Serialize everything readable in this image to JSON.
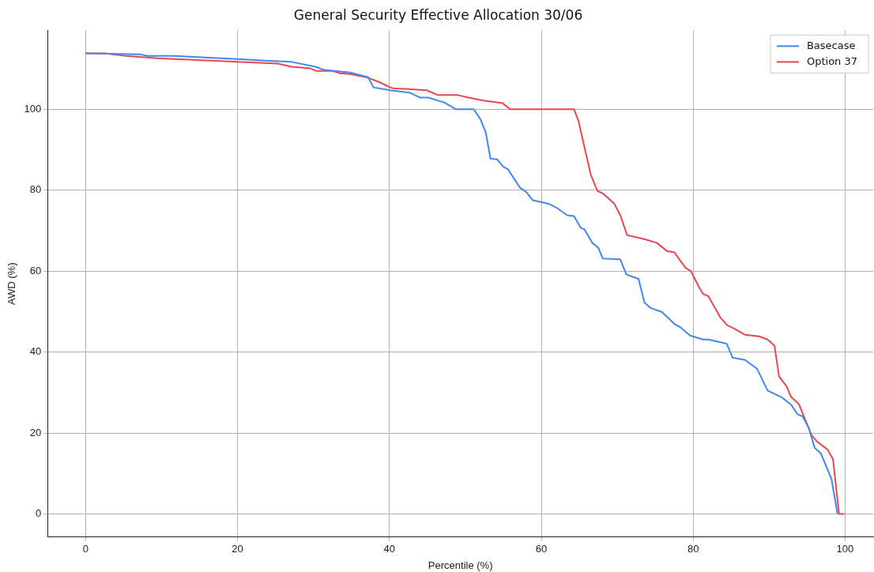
{
  "chart_data": {
    "type": "line",
    "title": "General Security Effective Allocation 30/06",
    "xlabel": "Percentile (%)",
    "ylabel": "AWD (%)",
    "xlim": [
      -5,
      103.7
    ],
    "ylim": [
      -5.7,
      119.5
    ],
    "xticks": [
      0,
      20,
      40,
      60,
      80,
      100
    ],
    "yticks": [
      0,
      20,
      40,
      60,
      80,
      100
    ],
    "grid": true,
    "legend": "top right",
    "series": [
      {
        "name": "Basecase",
        "color": "#4287f0",
        "x": [
          0,
          7.1,
          8.1,
          11.6,
          20,
          23.6,
          27.1,
          30.3,
          31.4,
          34.8,
          37.2,
          37.9,
          40.1,
          42.7,
          44,
          45.1,
          47.2,
          48.8,
          51.1,
          52,
          52.7,
          53.3,
          54.2,
          55,
          55.6,
          57.2,
          58,
          58.9,
          60.9,
          62,
          63.4,
          64.3,
          65.2,
          65.7,
          66.7,
          67.5,
          68.1,
          70.4,
          71.2,
          72.8,
          73.6,
          74.4,
          75.9,
          77.5,
          78.4,
          79.6,
          81.3,
          82,
          84.4,
          85.2,
          86.8,
          88.4,
          89.8,
          91.6,
          92.9,
          93.7,
          94.4,
          95.2,
          96,
          96.8,
          98.2,
          99
        ],
        "values": [
          113.8,
          113.6,
          113.2,
          113.2,
          112.4,
          112,
          111.7,
          110.5,
          109.7,
          109.1,
          107.9,
          105.4,
          104.7,
          104.1,
          102.9,
          102.9,
          101.7,
          100,
          100,
          97.5,
          94.2,
          87.8,
          87.6,
          85.8,
          85.2,
          80.6,
          79.6,
          77.5,
          76.7,
          75.7,
          73.8,
          73.6,
          70.7,
          70.3,
          67,
          65.8,
          63.1,
          62.9,
          59.2,
          58.1,
          52.2,
          50.9,
          49.9,
          47,
          46,
          44.1,
          43.1,
          43.1,
          42.1,
          38.6,
          38.1,
          35.9,
          30.5,
          28.9,
          27,
          24.7,
          24.1,
          21.4,
          16.3,
          15,
          8.7,
          0
        ]
      },
      {
        "name": "Option 37",
        "color": "#eb4650",
        "x": [
          0,
          2.5,
          5.3,
          9.5,
          16.6,
          20,
          25.3,
          27.1,
          29.6,
          30.3,
          32.4,
          33.5,
          34.8,
          37.2,
          38.8,
          40.1,
          40.5,
          44.9,
          46.4,
          49,
          50.4,
          52.5,
          54.9,
          55.9,
          64.3,
          64.9,
          66.5,
          67.4,
          68.1,
          69.6,
          70.4,
          71.3,
          73.4,
          75.2,
          76.6,
          77.5,
          78.1,
          79,
          79.7,
          80.7,
          81.3,
          82,
          83.6,
          84.5,
          85.2,
          86.8,
          88.7,
          89.8,
          90.7,
          91.3,
          92.3,
          92.9,
          93.9,
          95.6,
          96.3,
          97.7,
          98.4,
          99.2,
          99.9
        ],
        "values": [
          113.8,
          113.8,
          113.2,
          112.6,
          112,
          111.7,
          111.3,
          110.5,
          110.1,
          109.5,
          109.5,
          108.9,
          108.7,
          107.8,
          106.6,
          105.4,
          105.2,
          104.7,
          103.5,
          103.5,
          102.9,
          102.1,
          101.5,
          100,
          100,
          97.1,
          83.9,
          79.8,
          79.2,
          76.7,
          73.8,
          68.9,
          68,
          67,
          64.9,
          64.7,
          63.1,
          60.8,
          60,
          56.3,
          54.4,
          53.8,
          48.5,
          46.6,
          46,
          44.3,
          43.9,
          43.1,
          41.6,
          34,
          31.5,
          28.9,
          27.2,
          19.4,
          17.9,
          15.9,
          13.6,
          0,
          0
        ]
      }
    ]
  }
}
